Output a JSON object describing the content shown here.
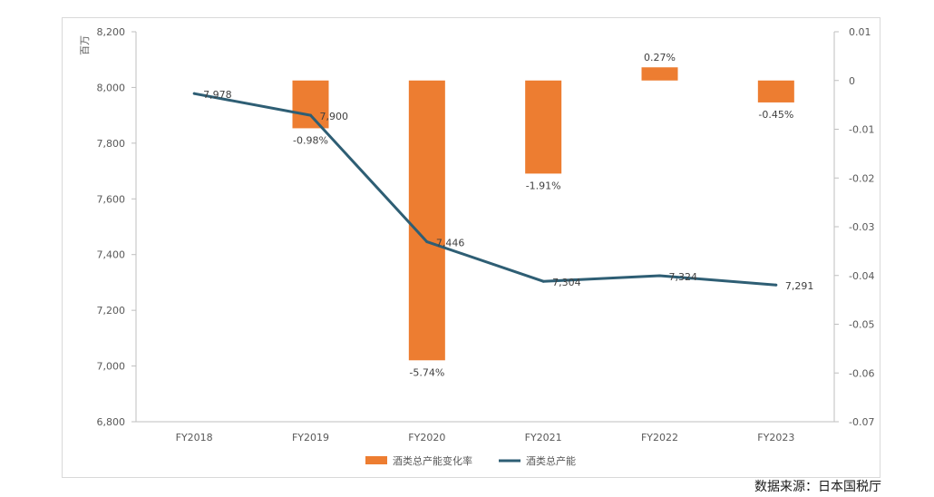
{
  "chart_data": {
    "type": "bar+line",
    "categories": [
      "FY2018",
      "FY2019",
      "FY2020",
      "FY2021",
      "FY2022",
      "FY2023"
    ],
    "y_left": {
      "unit": "百万",
      "range": [
        6800,
        8200
      ],
      "ticks": [
        "8,200",
        "8,000",
        "7,800",
        "7,600",
        "7,400",
        "7,200",
        "7,000",
        "6,800"
      ]
    },
    "y_right": {
      "range": [
        -0.07,
        0.01
      ],
      "ticks": [
        "0.01",
        "0",
        "-0.01",
        "-0.02",
        "-0.03",
        "-0.04",
        "-0.05",
        "-0.06",
        "-0.07"
      ]
    },
    "series": [
      {
        "name": "酒类总产能变化率",
        "kind": "bar",
        "axis": "right",
        "color": "#ED7D31",
        "values": [
          null,
          -0.0098,
          -0.0574,
          -0.0191,
          0.0027,
          -0.0045
        ],
        "labels": [
          "",
          "-0.98%",
          "-5.74%",
          "-1.91%",
          "0.27%",
          "-0.45%"
        ]
      },
      {
        "name": "酒类总产能",
        "kind": "line",
        "axis": "left",
        "color": "#2E5E74",
        "values": [
          7978,
          7900,
          7446,
          7304,
          7324,
          7291
        ],
        "labels": [
          "7,978",
          "7,900",
          "7,446",
          "7,304",
          "7,324",
          "7,291"
        ]
      }
    ],
    "legend_position": "bottom",
    "grid": false
  },
  "source_note": "数据来源：日本国税厅"
}
